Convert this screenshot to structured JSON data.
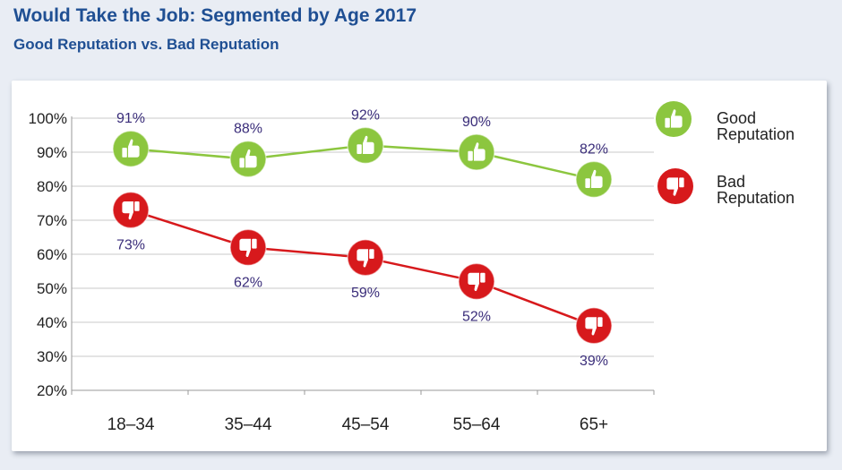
{
  "title": "Would Take the Job: Segmented by Age 2017",
  "subtitle": "Good Reputation vs. Bad Reputation",
  "chart_data": {
    "type": "line",
    "title": "Would Take the Job: Segmented by Age 2017",
    "subtitle": "Good Reputation vs. Bad Reputation",
    "categories": [
      "18–34",
      "35–44",
      "45–54",
      "55–64",
      "65+"
    ],
    "series": [
      {
        "name": "Good Reputation",
        "legend_lines": [
          "Good",
          "Reputation"
        ],
        "values": [
          91,
          88,
          92,
          90,
          82
        ],
        "labels": [
          "91%",
          "88%",
          "92%",
          "90%",
          "82%"
        ],
        "color": "#8cc63f",
        "marker_color": "#8cc63f",
        "icon": "thumbs-up-icon"
      },
      {
        "name": "Bad Reputation",
        "legend_lines": [
          "Bad",
          "Reputation"
        ],
        "values": [
          73,
          62,
          59,
          52,
          39
        ],
        "labels": [
          "73%",
          "62%",
          "59%",
          "52%",
          "39%"
        ],
        "color": "#d7191c",
        "marker_color": "#d7191c",
        "icon": "thumbs-down-icon"
      }
    ],
    "yticks": [
      "20%",
      "30%",
      "40%",
      "50%",
      "60%",
      "70%",
      "80%",
      "90%",
      "100%"
    ],
    "ylim": [
      20,
      100
    ],
    "xlabel": "",
    "ylabel": "",
    "grid": true,
    "legend": "right"
  }
}
